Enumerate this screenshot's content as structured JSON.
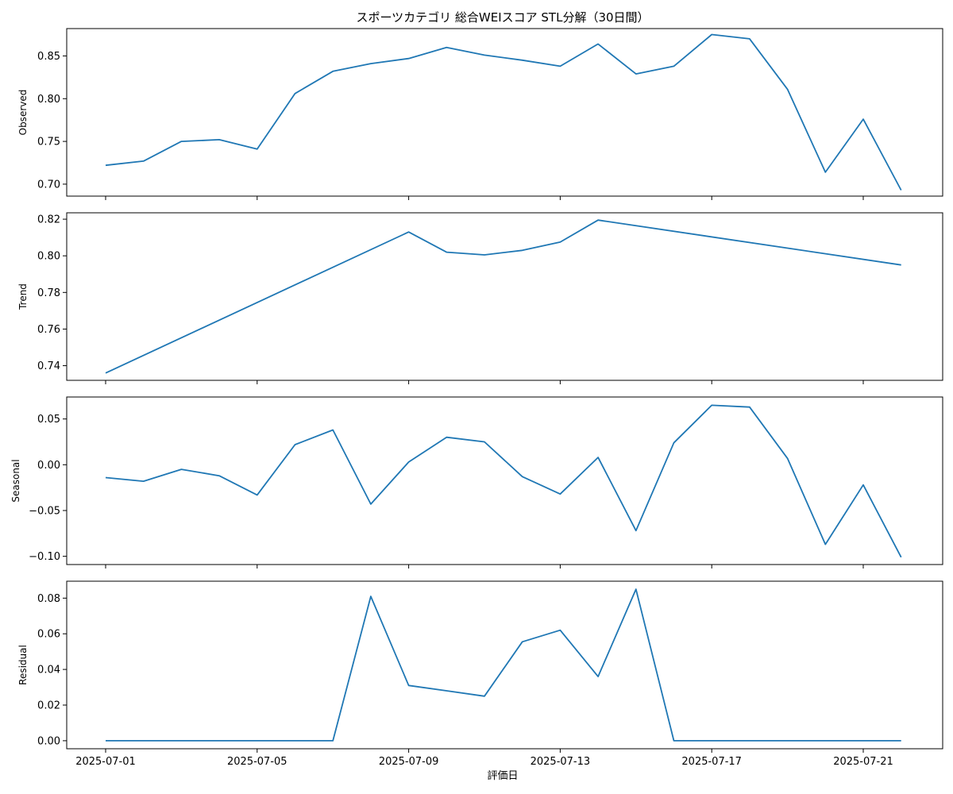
{
  "chart_data": {
    "type": "line",
    "title": "スポーツカテゴリ 総合WEIスコア STL分解（30日間）",
    "xlabel": "評価日",
    "x": [
      "2025-07-01",
      "2025-07-02",
      "2025-07-03",
      "2025-07-04",
      "2025-07-05",
      "2025-07-06",
      "2025-07-07",
      "2025-07-08",
      "2025-07-09",
      "2025-07-10",
      "2025-07-11",
      "2025-07-12",
      "2025-07-13",
      "2025-07-14",
      "2025-07-15",
      "2025-07-16",
      "2025-07-17",
      "2025-07-18",
      "2025-07-19",
      "2025-07-20",
      "2025-07-21",
      "2025-07-22"
    ],
    "x_ticks": [
      "2025-07-01",
      "2025-07-05",
      "2025-07-09",
      "2025-07-13",
      "2025-07-17",
      "2025-07-21"
    ],
    "grid": false,
    "panels": [
      {
        "ylabel": "Observed",
        "ylim": [
          0.686,
          0.882
        ],
        "yticks": [
          "0.70",
          "0.75",
          "0.80",
          "0.85"
        ],
        "values": [
          0.722,
          0.727,
          0.75,
          0.752,
          0.741,
          0.806,
          0.832,
          0.841,
          0.847,
          0.86,
          0.851,
          0.845,
          0.838,
          0.864,
          0.829,
          0.838,
          0.875,
          0.87,
          0.811,
          0.714,
          0.776,
          0.693
        ]
      },
      {
        "ylabel": "Trend",
        "ylim": [
          0.732,
          0.8235
        ],
        "yticks": [
          "0.74",
          "0.76",
          "0.78",
          "0.80",
          "0.82"
        ],
        "x_index": [
          0,
          8,
          9,
          10,
          11,
          12,
          13,
          21
        ],
        "values": [
          0.736,
          0.813,
          0.802,
          0.8005,
          0.803,
          0.8075,
          0.8195,
          0.795
        ]
      },
      {
        "ylabel": "Seasonal",
        "ylim": [
          -0.109,
          0.074
        ],
        "yticks": [
          "−0.10",
          "−0.05",
          "0.00",
          "0.05"
        ],
        "values": [
          -0.014,
          -0.018,
          -0.005,
          -0.012,
          -0.033,
          0.022,
          0.038,
          -0.043,
          0.003,
          0.03,
          0.025,
          -0.013,
          -0.032,
          0.008,
          -0.072,
          0.024,
          0.065,
          0.063,
          0.007,
          -0.087,
          -0.022,
          -0.101
        ]
      },
      {
        "ylabel": "Residual",
        "ylim": [
          -0.0045,
          0.0895
        ],
        "yticks": [
          "0.00",
          "0.02",
          "0.04",
          "0.06",
          "0.08"
        ],
        "values": [
          0,
          0,
          0,
          0,
          0,
          0,
          0,
          0.081,
          0.031,
          0.028,
          0.025,
          0.0555,
          0.062,
          0.036,
          0.085,
          0,
          0,
          0,
          0,
          0,
          0,
          0
        ]
      }
    ]
  }
}
